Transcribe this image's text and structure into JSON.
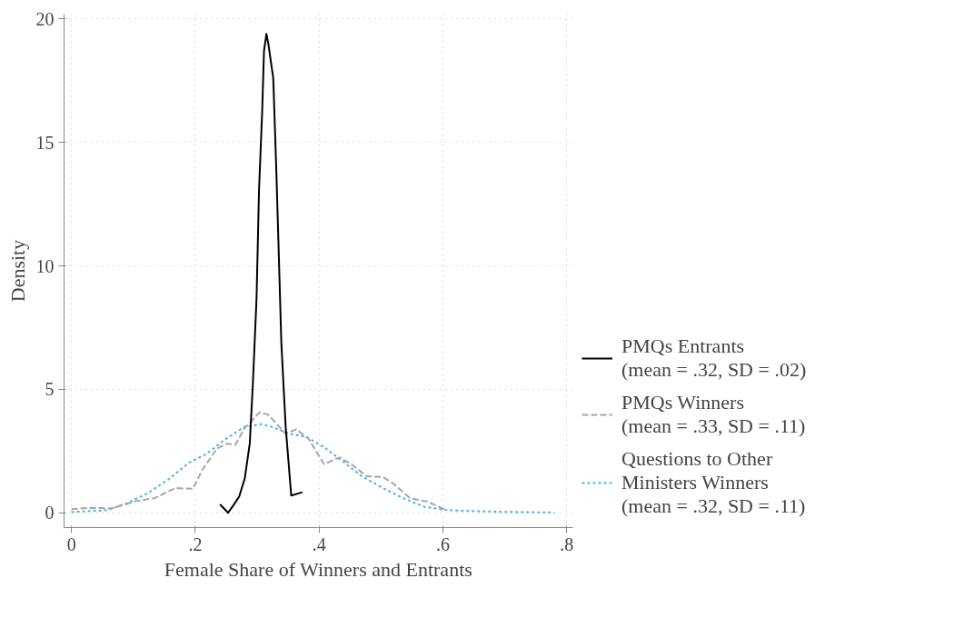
{
  "chart_data": {
    "type": "line",
    "xlabel": "Female Share of Winners and Entrants",
    "ylabel": "Density",
    "xlim": [
      -0.012,
      0.81
    ],
    "ylim": [
      -0.6,
      20.2
    ],
    "xticks": [
      {
        "value": 0,
        "label": "0"
      },
      {
        "value": 0.2,
        "label": ".2"
      },
      {
        "value": 0.4,
        "label": ".4"
      },
      {
        "value": 0.6,
        "label": ".6"
      },
      {
        "value": 0.8,
        "label": ".8"
      }
    ],
    "yticks": [
      0,
      5,
      10,
      15,
      20
    ],
    "grid": true,
    "legend": "right",
    "series": [
      {
        "name": "PMQs Entrants\n(mean = .32, SD = .02)",
        "color": "#000000",
        "line_style": "solid",
        "x": [
          0.24,
          0.253,
          0.261,
          0.271,
          0.28,
          0.288,
          0.293,
          0.299,
          0.303,
          0.308,
          0.311,
          0.315,
          0.318,
          0.322,
          0.326,
          0.331,
          0.335,
          0.339,
          0.346,
          0.355,
          0.373
        ],
        "values": [
          0.34,
          0,
          0.28,
          0.66,
          1.4,
          2.8,
          5.2,
          8.7,
          13.1,
          16.2,
          18.7,
          19.4,
          19.0,
          18.3,
          17.6,
          13.8,
          10.4,
          6.9,
          3.5,
          0.7,
          0.83
        ]
      },
      {
        "name": "PMQs Winners\n(mean = .33, SD = .11)",
        "color": "#a6a6a6",
        "line_style": "dashed",
        "x": [
          0,
          0.033,
          0.064,
          0.106,
          0.134,
          0.168,
          0.196,
          0.212,
          0.235,
          0.251,
          0.265,
          0.279,
          0.304,
          0.318,
          0.346,
          0.363,
          0.383,
          0.408,
          0.433,
          0.452,
          0.477,
          0.503,
          0.519,
          0.547,
          0.575,
          0.606
        ],
        "values": [
          0.15,
          0.2,
          0.17,
          0.48,
          0.59,
          1.0,
          0.97,
          1.76,
          2.6,
          2.8,
          2.76,
          3.4,
          4.07,
          3.97,
          3.2,
          3.38,
          3.0,
          1.97,
          2.24,
          1.97,
          1.48,
          1.45,
          1.2,
          0.59,
          0.45,
          0.1
        ]
      },
      {
        "name": "Questions to Other\nMinisters Winners\n(mean = .32, SD = .11)",
        "color": "#4fb3e8",
        "line_style": "dotted",
        "x": [
          0,
          0.056,
          0.089,
          0.123,
          0.156,
          0.19,
          0.218,
          0.246,
          0.279,
          0.307,
          0.324,
          0.352,
          0.38,
          0.408,
          0.441,
          0.469,
          0.503,
          0.536,
          0.57,
          0.609,
          0.693,
          0.78
        ],
        "values": [
          0.03,
          0.1,
          0.38,
          0.79,
          1.34,
          2.03,
          2.38,
          2.93,
          3.48,
          3.59,
          3.48,
          3.2,
          3.07,
          2.66,
          2.03,
          1.48,
          1.0,
          0.59,
          0.24,
          0.1,
          0.04,
          0.01
        ]
      }
    ]
  }
}
